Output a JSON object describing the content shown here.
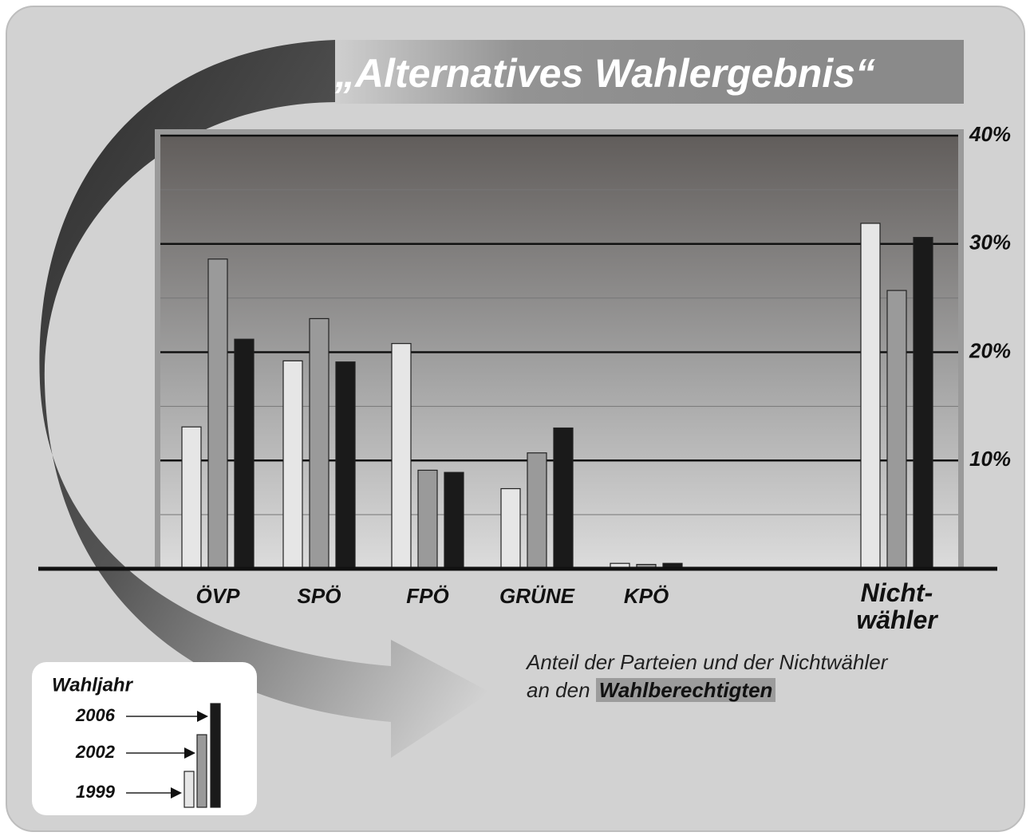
{
  "chart_data": {
    "type": "bar",
    "title": "„Alternatives Wahlergebnis“",
    "categories": [
      "ÖVP",
      "SPÖ",
      "FPÖ",
      "GRÜNE",
      "KPÖ",
      "Nicht-\nwähler"
    ],
    "series": [
      {
        "name": "1999",
        "color": "#e6e6e6",
        "values": [
          13.1,
          19.2,
          20.8,
          7.4,
          0.5,
          31.9
        ]
      },
      {
        "name": "2002",
        "color": "#9a9a9a",
        "values": [
          28.6,
          23.1,
          9.1,
          10.7,
          0.4,
          25.7
        ]
      },
      {
        "name": "2006",
        "color": "#1a1a1a",
        "values": [
          21.2,
          19.1,
          8.9,
          13.0,
          0.5,
          30.6
        ]
      }
    ],
    "ylim": [
      0,
      40
    ],
    "yticks": [
      {
        "value": 10,
        "label": "10%"
      },
      {
        "value": 20,
        "label": "20%"
      },
      {
        "value": 30,
        "label": "30%"
      },
      {
        "value": 40,
        "label": "40%"
      }
    ],
    "minor_yticks": [
      5,
      15,
      25,
      35
    ],
    "grid": true,
    "axis_side": "right",
    "legend": {
      "title": "Wahljahr",
      "position": "lower left"
    },
    "annotation": {
      "line1": "Anteil der Parteien und der Nichtwähler",
      "line2": "an den",
      "highlight": "Wahlberechtigten"
    }
  }
}
